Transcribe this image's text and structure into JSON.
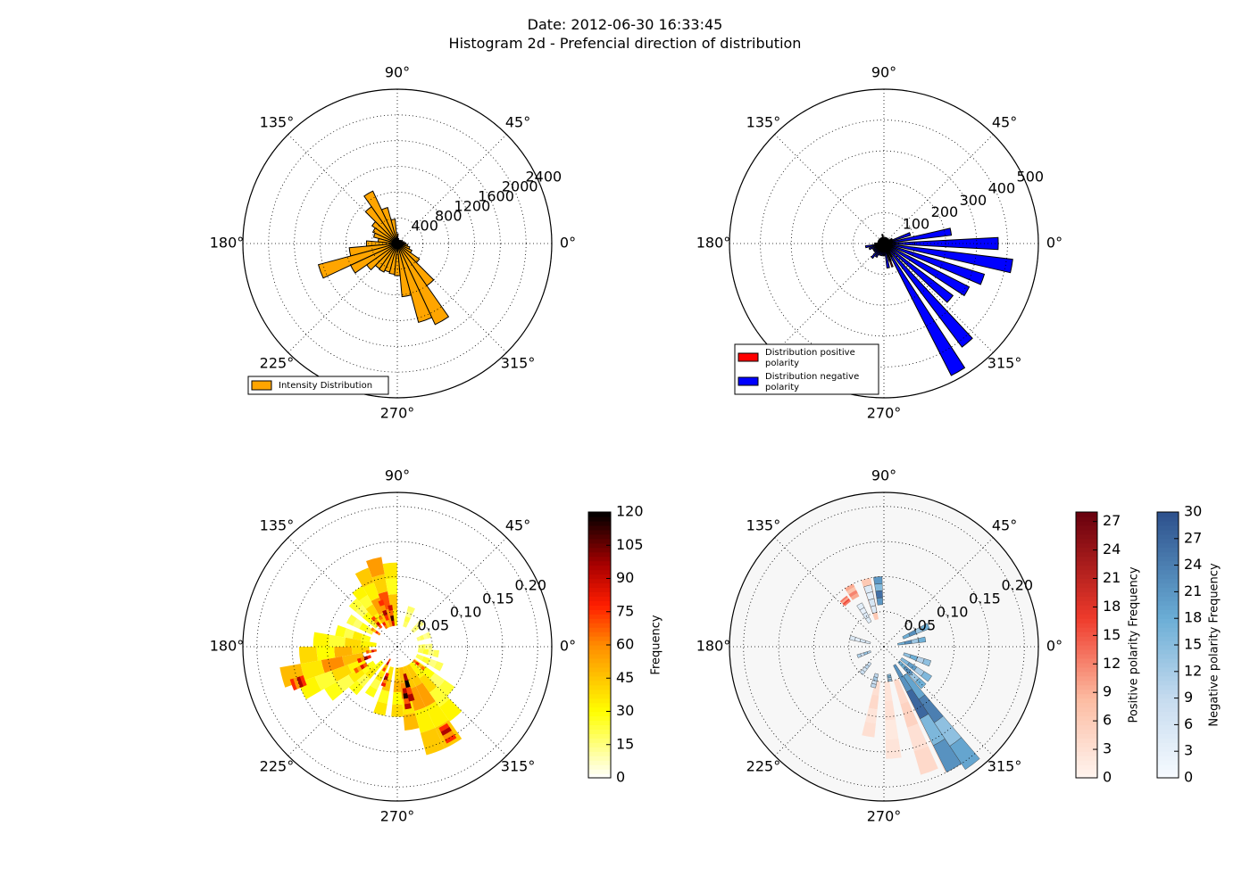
{
  "figure": {
    "title_line1": "Date: 2012-06-30 16:33:45",
    "title_line2": "Histogram 2d - Prefencial direction of distribution"
  },
  "angle_labels": [
    "0°",
    "45°",
    "90°",
    "135°",
    "180°",
    "225°",
    "270°",
    "315°"
  ],
  "chart_data": [
    {
      "type": "bar",
      "subtype": "polar",
      "legend": [
        "Intensity Distribution"
      ],
      "legend_position": "lower-left",
      "radial_ticks": [
        "400",
        "800",
        "1200",
        "1600",
        "2000",
        "2400"
      ],
      "rlim": [
        0,
        2400
      ],
      "grid": true,
      "colors": {
        "bars": "#ffa500"
      },
      "series": [
        {
          "name": "Intensity Distribution",
          "angles_deg": [
            0,
            10,
            20,
            30,
            40,
            50,
            60,
            70,
            80,
            90,
            100,
            110,
            120,
            130,
            140,
            150,
            160,
            170,
            180,
            190,
            200,
            210,
            220,
            230,
            240,
            250,
            260,
            270,
            280,
            290,
            300,
            310,
            320,
            330,
            340,
            350
          ],
          "values": [
            130,
            110,
            80,
            90,
            70,
            60,
            50,
            60,
            80,
            150,
            380,
            580,
            900,
            700,
            480,
            420,
            380,
            300,
            480,
            750,
            1270,
            800,
            580,
            480,
            490,
            460,
            480,
            500,
            830,
            1270,
            1390,
            800,
            420,
            250,
            200,
            160
          ]
        }
      ]
    },
    {
      "type": "bar",
      "subtype": "polar",
      "legend": [
        "Distribution positive\n polarity",
        "Distribution negative\n polarity"
      ],
      "legend_position": "lower-left",
      "radial_ticks": [
        "100",
        "200",
        "300",
        "400",
        "500"
      ],
      "rlim": [
        0,
        500
      ],
      "grid": true,
      "colors": {
        "positive": "#ff0000",
        "negative": "#0000ff"
      },
      "series": [
        {
          "name": "Distribution positive\n polarity",
          "angles_deg": [
            0,
            10,
            20,
            30,
            40,
            50,
            60,
            70,
            80,
            90,
            100,
            110,
            120,
            130,
            140,
            150,
            160,
            170,
            180,
            190,
            200,
            210,
            220,
            230,
            240,
            250,
            260,
            270,
            280,
            290,
            300,
            310,
            320,
            330,
            340,
            350
          ],
          "values": [
            12,
            10,
            8,
            8,
            8,
            8,
            8,
            10,
            12,
            12,
            22,
            8,
            6,
            8,
            6,
            6,
            8,
            8,
            12,
            10,
            10,
            8,
            8,
            10,
            8,
            8,
            8,
            6,
            20,
            80,
            50,
            30,
            20,
            15,
            15,
            12
          ]
        },
        {
          "name": "Distribution negative\n polarity",
          "angles_deg": [
            0,
            10,
            20,
            30,
            40,
            50,
            60,
            70,
            80,
            90,
            100,
            110,
            120,
            130,
            140,
            150,
            160,
            170,
            180,
            190,
            200,
            210,
            220,
            230,
            240,
            250,
            260,
            270,
            280,
            290,
            300,
            310,
            320,
            330,
            340,
            350
          ],
          "values": [
            370,
            220,
            90,
            30,
            20,
            20,
            20,
            20,
            20,
            20,
            30,
            20,
            20,
            20,
            20,
            20,
            20,
            20,
            30,
            60,
            50,
            40,
            40,
            60,
            50,
            40,
            40,
            40,
            80,
            60,
            480,
            420,
            280,
            310,
            340,
            420
          ]
        }
      ]
    },
    {
      "type": "heatmap",
      "subtype": "polar",
      "radial_ticks": [
        "0.05",
        "0.10",
        "0.15",
        "0.20"
      ],
      "rlim": [
        0,
        0.22
      ],
      "colorbar_label": "Frequency",
      "colorbar_ticks": [
        "0",
        "15",
        "30",
        "45",
        "60",
        "75",
        "90",
        "105",
        "120"
      ],
      "colorbar_range": [
        0,
        120
      ],
      "colormap": "hot_r",
      "sectors": [
        {
          "angle_deg": 95,
          "r": [
            0.03,
            0.12
          ],
          "value": 45
        },
        {
          "angle_deg": 105,
          "r": [
            0.03,
            0.13
          ],
          "value": 70
        },
        {
          "angle_deg": 115,
          "r": [
            0.03,
            0.12
          ],
          "value": 55
        },
        {
          "angle_deg": 125,
          "r": [
            0.04,
            0.1
          ],
          "value": 40
        },
        {
          "angle_deg": 135,
          "r": [
            0.04,
            0.09
          ],
          "value": 30
        },
        {
          "angle_deg": 150,
          "r": [
            0.04,
            0.08
          ],
          "value": 28
        },
        {
          "angle_deg": 165,
          "r": [
            0.04,
            0.09
          ],
          "value": 35
        },
        {
          "angle_deg": 175,
          "r": [
            0.03,
            0.12
          ],
          "value": 40
        },
        {
          "angle_deg": 185,
          "r": [
            0.04,
            0.14
          ],
          "value": 50
        },
        {
          "angle_deg": 195,
          "r": [
            0.05,
            0.17
          ],
          "value": 60
        },
        {
          "angle_deg": 205,
          "r": [
            0.05,
            0.15
          ],
          "value": 40
        },
        {
          "angle_deg": 215,
          "r": [
            0.04,
            0.12
          ],
          "value": 35
        },
        {
          "angle_deg": 225,
          "r": [
            0.03,
            0.09
          ],
          "value": 35
        },
        {
          "angle_deg": 240,
          "r": [
            0.03,
            0.08
          ],
          "value": 35
        },
        {
          "angle_deg": 255,
          "r": [
            0.03,
            0.1
          ],
          "value": 45
        },
        {
          "angle_deg": 270,
          "r": [
            0.03,
            0.1
          ],
          "value": 50
        },
        {
          "angle_deg": 280,
          "r": [
            0.03,
            0.12
          ],
          "value": 60
        },
        {
          "angle_deg": 290,
          "r": [
            0.03,
            0.16
          ],
          "value": 55
        },
        {
          "angle_deg": 300,
          "r": [
            0.03,
            0.16
          ],
          "value": 55
        },
        {
          "angle_deg": 310,
          "r": [
            0.03,
            0.13
          ],
          "value": 40
        },
        {
          "angle_deg": 320,
          "r": [
            0.03,
            0.1
          ],
          "value": 30
        },
        {
          "angle_deg": 335,
          "r": [
            0.03,
            0.07
          ],
          "value": 25
        },
        {
          "angle_deg": 350,
          "r": [
            0.03,
            0.06
          ],
          "value": 25
        },
        {
          "angle_deg": 0,
          "r": [
            0.03,
            0.05
          ],
          "value": 20
        },
        {
          "angle_deg": 20,
          "r": [
            0.03,
            0.05
          ],
          "value": 20
        },
        {
          "angle_deg": 45,
          "r": [
            0.03,
            0.05
          ],
          "value": 18
        },
        {
          "angle_deg": 70,
          "r": [
            0.03,
            0.06
          ],
          "value": 22
        }
      ],
      "hotspots": [
        {
          "angle_deg": 100,
          "r": [
            0.03,
            0.06
          ],
          "value": 110
        },
        {
          "angle_deg": 110,
          "r": [
            0.04,
            0.07
          ],
          "value": 95
        },
        {
          "angle_deg": 120,
          "r": [
            0.03,
            0.05
          ],
          "value": 80
        },
        {
          "angle_deg": 130,
          "r": [
            0.035,
            0.055
          ],
          "value": 90
        },
        {
          "angle_deg": 145,
          "r": [
            0.03,
            0.045
          ],
          "value": 75
        },
        {
          "angle_deg": 190,
          "r": [
            0.03,
            0.045
          ],
          "value": 85
        },
        {
          "angle_deg": 200,
          "r": [
            0.04,
            0.06
          ],
          "value": 100
        },
        {
          "angle_deg": 200,
          "r": [
            0.14,
            0.16
          ],
          "value": 95
        },
        {
          "angle_deg": 210,
          "r": [
            0.05,
            0.07
          ],
          "value": 85
        },
        {
          "angle_deg": 240,
          "r": [
            0.02,
            0.04
          ],
          "value": 90
        },
        {
          "angle_deg": 250,
          "r": [
            0.04,
            0.06
          ],
          "value": 100
        },
        {
          "angle_deg": 280,
          "r": [
            0.06,
            0.09
          ],
          "value": 115
        },
        {
          "angle_deg": 285,
          "r": [
            0.04,
            0.08
          ],
          "value": 120
        },
        {
          "angle_deg": 300,
          "r": [
            0.13,
            0.155
          ],
          "value": 95
        },
        {
          "angle_deg": 320,
          "r": [
            0.03,
            0.05
          ],
          "value": 80
        }
      ]
    },
    {
      "type": "heatmap",
      "subtype": "polar",
      "radial_ticks": [
        "0.05",
        "0.10",
        "0.15",
        "0.20"
      ],
      "rlim": [
        0,
        0.22
      ],
      "colorbars": [
        {
          "label": "Positive polarity Frequency",
          "ticks": [
            "0",
            "3",
            "6",
            "9",
            "12",
            "15",
            "18",
            "21",
            "24",
            "27"
          ],
          "range": [
            0,
            28
          ],
          "colormap": "Reds"
        },
        {
          "label": "Negative polarity Frequency",
          "ticks": [
            "0",
            "3",
            "6",
            "9",
            "12",
            "15",
            "18",
            "21",
            "24",
            "27",
            "30"
          ],
          "range": [
            0,
            30
          ],
          "colormap": "Blues"
        }
      ],
      "positive_sectors": [
        {
          "angle_deg": 105,
          "r": [
            0.04,
            0.1
          ],
          "value": 8
        },
        {
          "angle_deg": 120,
          "r": [
            0.08,
            0.1
          ],
          "value": 12
        },
        {
          "angle_deg": 130,
          "r": [
            0.08,
            0.09
          ],
          "value": 16
        },
        {
          "angle_deg": 260,
          "r": [
            0.05,
            0.13
          ],
          "value": 4
        },
        {
          "angle_deg": 275,
          "r": [
            0.05,
            0.16
          ],
          "value": 3
        },
        {
          "angle_deg": 290,
          "r": [
            0.05,
            0.19
          ],
          "value": 5
        },
        {
          "angle_deg": 300,
          "r": [
            0.05,
            0.2
          ],
          "value": 4
        }
      ],
      "negative_sectors": [
        {
          "angle_deg": 95,
          "r": [
            0.06,
            0.1
          ],
          "value": 26
        },
        {
          "angle_deg": 105,
          "r": [
            0.05,
            0.09
          ],
          "value": 6
        },
        {
          "angle_deg": 120,
          "r": [
            0.04,
            0.07
          ],
          "value": 5
        },
        {
          "angle_deg": 165,
          "r": [
            0.02,
            0.05
          ],
          "value": 6
        },
        {
          "angle_deg": 200,
          "r": [
            0.02,
            0.04
          ],
          "value": 14
        },
        {
          "angle_deg": 230,
          "r": [
            0.03,
            0.05
          ],
          "value": 10
        },
        {
          "angle_deg": 255,
          "r": [
            0.04,
            0.06
          ],
          "value": 12
        },
        {
          "angle_deg": 280,
          "r": [
            0.04,
            0.05
          ],
          "value": 18
        },
        {
          "angle_deg": 300,
          "r": [
            0.03,
            0.2
          ],
          "value": 27
        },
        {
          "angle_deg": 307,
          "r": [
            0.05,
            0.21
          ],
          "value": 24
        },
        {
          "angle_deg": 315,
          "r": [
            0.03,
            0.08
          ],
          "value": 22
        },
        {
          "angle_deg": 325,
          "r": [
            0.03,
            0.08
          ],
          "value": 20
        },
        {
          "angle_deg": 340,
          "r": [
            0.03,
            0.07
          ],
          "value": 18
        },
        {
          "angle_deg": 10,
          "r": [
            0.02,
            0.06
          ],
          "value": 22
        },
        {
          "angle_deg": 25,
          "r": [
            0.03,
            0.07
          ],
          "value": 22
        }
      ]
    }
  ]
}
